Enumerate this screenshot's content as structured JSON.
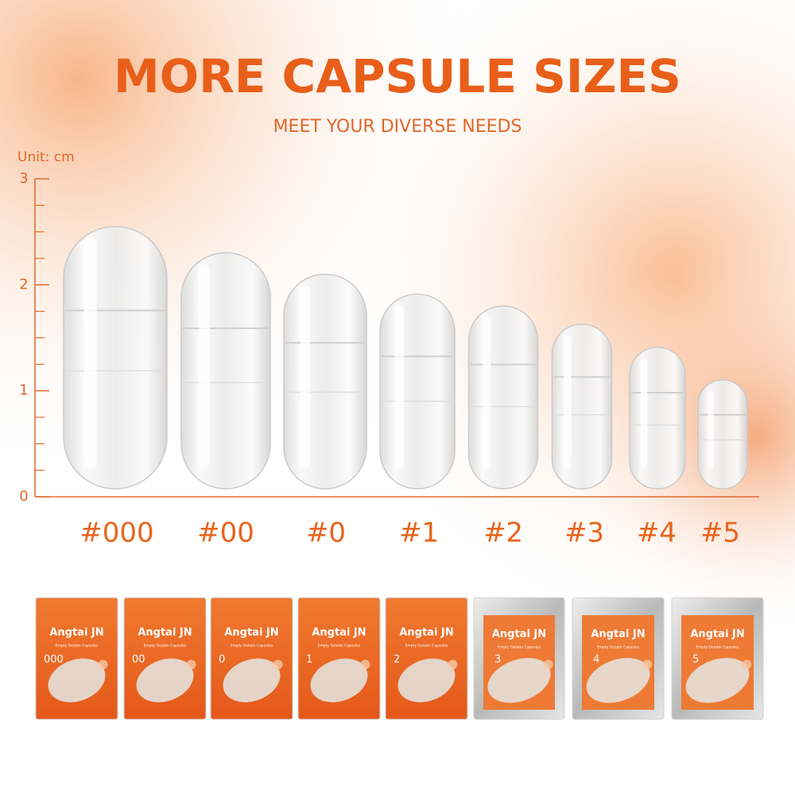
{
  "header": {
    "title": "MORE CAPSULE SIZES",
    "subtitle": "MEET YOUR DIVERSE NEEDS"
  },
  "ruler": {
    "unit": "Unit: cm",
    "ticks": [
      0,
      1,
      2,
      3
    ]
  },
  "capsules": [
    "#000",
    "#00",
    "#0",
    "#1",
    "#2",
    "#3",
    "#4",
    "#5"
  ],
  "packages": [
    {
      "brand": "Angtai JN",
      "product": "Empty Gelatin Capsules",
      "size": "000"
    },
    {
      "brand": "Angtai JN",
      "product": "Empty Gelatin Capsules",
      "size": "00"
    },
    {
      "brand": "Angtai JN",
      "product": "Empty Gelatin Capsules",
      "size": "0"
    },
    {
      "brand": "Angtai JN",
      "product": "Empty Gelatin Capsules",
      "size": "1"
    },
    {
      "brand": "Angtai JN",
      "product": "Empty Gelatin Capsules",
      "size": "2"
    },
    {
      "brand": "Angtai JN",
      "product": "Empty Gelatin Capsules",
      "size": "3"
    },
    {
      "brand": "Angtai JN",
      "product": "Empty Gelatin Capsules",
      "size": "4"
    },
    {
      "brand": "Angtai JN",
      "product": "Empty Gelatin Capsules",
      "size": "5"
    }
  ]
}
